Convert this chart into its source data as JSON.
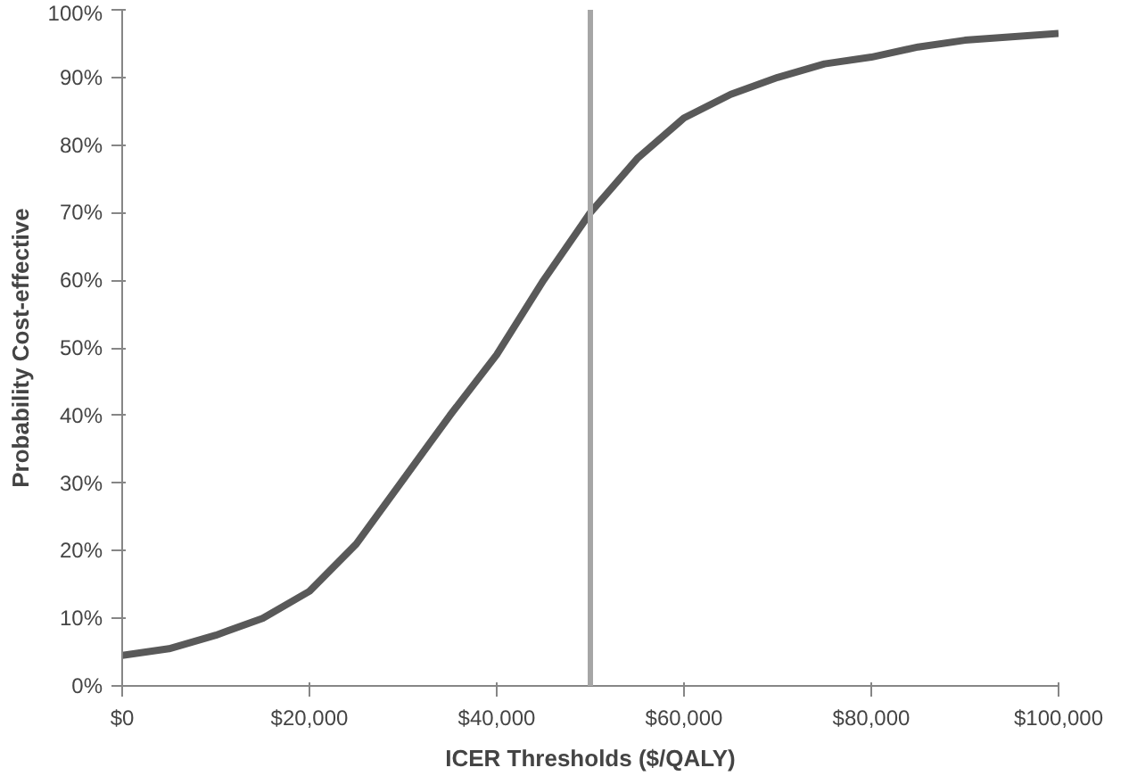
{
  "chart_data": {
    "type": "line",
    "xlabel": "ICER Thresholds ($/QALY)",
    "ylabel": "Probability Cost-effective",
    "x": [
      0,
      5000,
      10000,
      15000,
      20000,
      25000,
      30000,
      35000,
      40000,
      45000,
      50000,
      55000,
      60000,
      65000,
      70000,
      75000,
      80000,
      85000,
      90000,
      95000,
      100000
    ],
    "series": [
      {
        "color": "#595959",
        "values": [
          4.5,
          5.5,
          7.5,
          10,
          14,
          21,
          30.5,
          40,
          49,
          60,
          70,
          78,
          84,
          87.5,
          90,
          92,
          93,
          94.5,
          95.5,
          96,
          96.5
        ]
      }
    ],
    "xlim": [
      0,
      100000
    ],
    "ylim": [
      0,
      100
    ],
    "xticks": [
      {
        "value": 0,
        "label": "$0"
      },
      {
        "value": 20000,
        "label": "$20,000"
      },
      {
        "value": 40000,
        "label": "$40,000"
      },
      {
        "value": 60000,
        "label": "$60,000"
      },
      {
        "value": 80000,
        "label": "$80,000"
      },
      {
        "value": 100000,
        "label": "$100,000"
      }
    ],
    "yticks": [
      {
        "value": 0,
        "label": "0%"
      },
      {
        "value": 10,
        "label": "10%"
      },
      {
        "value": 20,
        "label": "20%"
      },
      {
        "value": 30,
        "label": "30%"
      },
      {
        "value": 40,
        "label": "40%"
      },
      {
        "value": 50,
        "label": "50%"
      },
      {
        "value": 60,
        "label": "60%"
      },
      {
        "value": 70,
        "label": "70%"
      },
      {
        "value": 80,
        "label": "80%"
      },
      {
        "value": 90,
        "label": "90%"
      },
      {
        "value": 100,
        "label": "100%"
      }
    ],
    "ref_lines": [
      {
        "axis": "x",
        "value": 50000,
        "color": "#a6a6a6"
      }
    ],
    "grid": false,
    "marker": "none",
    "line_style": "solid"
  }
}
